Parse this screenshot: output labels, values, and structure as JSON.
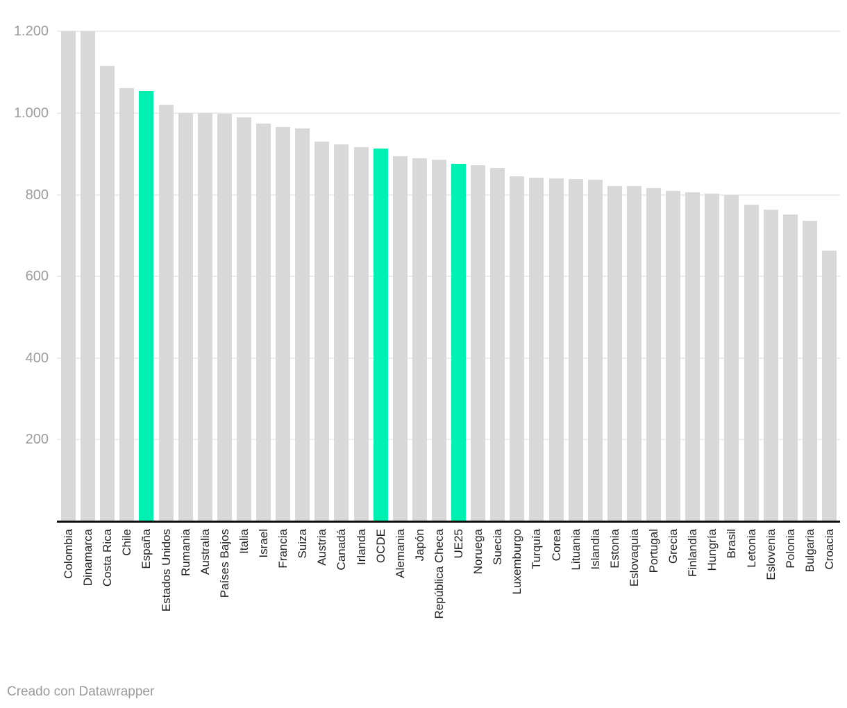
{
  "chart_data": {
    "type": "bar",
    "categories": [
      "Colombia",
      "Dinamarca",
      "Costa Rica",
      "Chile",
      "España",
      "Estados Unidos",
      "Rumania",
      "Australia",
      "Países Bajos",
      "Italia",
      "Israel",
      "Francia",
      "Suiza",
      "Austria",
      "Canadá",
      "Irlanda",
      "OCDE",
      "Alemania",
      "Japón",
      "República Checa",
      "UE25",
      "Noruega",
      "Suecia",
      "Luxemburgo",
      "Turquía",
      "Corea",
      "Lituania",
      "Islandia",
      "Estonia",
      "Eslovaquia",
      "Portugal",
      "Grecia",
      "Finlandia",
      "Hungría",
      "Brasil",
      "Letonia",
      "Eslovenia",
      "Polonia",
      "Bulgaria",
      "Croacia"
    ],
    "values": [
      1200,
      1200,
      1116,
      1062,
      1054,
      1020,
      1000,
      1000,
      998,
      989,
      974,
      966,
      962,
      930,
      923,
      916,
      913,
      894,
      889,
      886,
      875,
      872,
      866,
      845,
      842,
      840,
      839,
      836,
      822,
      821,
      817,
      810,
      806,
      802,
      799,
      776,
      764,
      752,
      736,
      663
    ],
    "highlighted_categories": [
      "España",
      "OCDE",
      "UE25"
    ],
    "yticks": [
      200,
      400,
      600,
      800,
      1000,
      1200
    ],
    "ytick_labels": [
      "200",
      "400",
      "600",
      "800",
      "1.000",
      "1.200"
    ],
    "ylim": [
      0,
      1200
    ],
    "grid": "horizontal",
    "legend": "none",
    "title": "",
    "xlabel": "",
    "ylabel": "",
    "bar_color": "#d9d9d9",
    "highlight_color": "#00f0b2"
  },
  "footer": {
    "credit": "Creado con Datawrapper"
  },
  "colors": {
    "background": "#ffffff",
    "gridline": "#ececec",
    "axis_line": "#0d0d0d",
    "ytick_text": "#9c9c9c",
    "xtick_text": "#1f1f1f",
    "footer_text": "#9b9b9b"
  }
}
